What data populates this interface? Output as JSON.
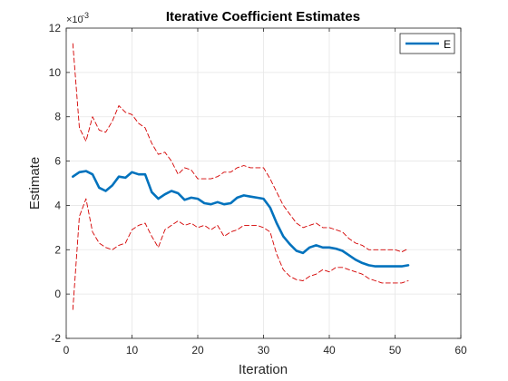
{
  "chart_data": {
    "type": "line",
    "title": "Iterative Coefficient Estimates",
    "xlabel": "Iteration",
    "ylabel": "Estimate",
    "y_exponent_label": "×10",
    "y_exponent_power": "-3",
    "xlim": [
      0,
      60
    ],
    "ylim": [
      -2,
      12
    ],
    "x_ticks": [
      0,
      10,
      20,
      30,
      40,
      50,
      60
    ],
    "y_ticks": [
      -2,
      0,
      2,
      4,
      6,
      8,
      10,
      12
    ],
    "grid": true,
    "legend": {
      "placement": "top-right",
      "entries": [
        "E"
      ]
    },
    "series": [
      {
        "name": "E",
        "style": "solid",
        "color": "#0072bd",
        "x": [
          1,
          2,
          3,
          4,
          5,
          6,
          7,
          8,
          9,
          10,
          11,
          12,
          13,
          14,
          15,
          16,
          17,
          18,
          19,
          20,
          21,
          22,
          23,
          24,
          25,
          26,
          27,
          28,
          29,
          30,
          31,
          32,
          33,
          34,
          35,
          36,
          37,
          38,
          39,
          40,
          41,
          42,
          43,
          44,
          45,
          46,
          47,
          48,
          49,
          50,
          51,
          52
        ],
        "values": [
          5.3,
          5.5,
          5.55,
          5.4,
          4.8,
          4.65,
          4.9,
          5.3,
          5.25,
          5.5,
          5.4,
          5.4,
          4.6,
          4.3,
          4.5,
          4.65,
          4.55,
          4.25,
          4.35,
          4.3,
          4.1,
          4.05,
          4.15,
          4.05,
          4.1,
          4.35,
          4.45,
          4.4,
          4.35,
          4.3,
          3.9,
          3.2,
          2.6,
          2.25,
          1.95,
          1.85,
          2.1,
          2.2,
          2.1,
          2.1,
          2.05,
          1.95,
          1.75,
          1.55,
          1.4,
          1.3,
          1.25,
          1.25,
          1.25,
          1.25,
          1.25,
          1.3
        ]
      },
      {
        "name": "",
        "style": "dashed",
        "color": "#d40000",
        "x": [
          1,
          2,
          3,
          4,
          5,
          6,
          7,
          8,
          9,
          10,
          11,
          12,
          13,
          14,
          15,
          16,
          17,
          18,
          19,
          20,
          21,
          22,
          23,
          24,
          25,
          26,
          27,
          28,
          29,
          30,
          31,
          32,
          33,
          34,
          35,
          36,
          37,
          38,
          39,
          40,
          41,
          42,
          43,
          44,
          45,
          46,
          47,
          48,
          49,
          50,
          51,
          52
        ],
        "values": [
          11.3,
          7.5,
          6.9,
          8.0,
          7.4,
          7.3,
          7.8,
          8.5,
          8.2,
          8.1,
          7.7,
          7.5,
          6.8,
          6.3,
          6.4,
          6.0,
          5.4,
          5.7,
          5.6,
          5.2,
          5.2,
          5.2,
          5.3,
          5.5,
          5.5,
          5.7,
          5.8,
          5.7,
          5.7,
          5.7,
          5.2,
          4.6,
          4.0,
          3.6,
          3.2,
          3.0,
          3.1,
          3.2,
          3.0,
          3.0,
          2.9,
          2.8,
          2.5,
          2.3,
          2.2,
          2.0,
          2.0,
          2.0,
          2.0,
          2.0,
          1.9,
          2.05
        ]
      },
      {
        "name": "",
        "style": "dashed",
        "color": "#d40000",
        "x": [
          1,
          2,
          3,
          4,
          5,
          6,
          7,
          8,
          9,
          10,
          11,
          12,
          13,
          14,
          15,
          16,
          17,
          18,
          19,
          20,
          21,
          22,
          23,
          24,
          25,
          26,
          27,
          28,
          29,
          30,
          31,
          32,
          33,
          34,
          35,
          36,
          37,
          38,
          39,
          40,
          41,
          42,
          43,
          44,
          45,
          46,
          47,
          48,
          49,
          50,
          51,
          52
        ],
        "values": [
          -0.7,
          3.5,
          4.3,
          2.8,
          2.3,
          2.1,
          2.0,
          2.2,
          2.3,
          2.9,
          3.1,
          3.2,
          2.6,
          2.1,
          2.9,
          3.1,
          3.3,
          3.1,
          3.2,
          3.0,
          3.1,
          2.9,
          3.1,
          2.6,
          2.8,
          2.9,
          3.1,
          3.1,
          3.1,
          3.0,
          2.8,
          1.8,
          1.1,
          0.8,
          0.65,
          0.6,
          0.8,
          0.9,
          1.1,
          1.0,
          1.2,
          1.2,
          1.1,
          1.0,
          0.9,
          0.7,
          0.6,
          0.5,
          0.5,
          0.5,
          0.5,
          0.6
        ]
      }
    ]
  }
}
